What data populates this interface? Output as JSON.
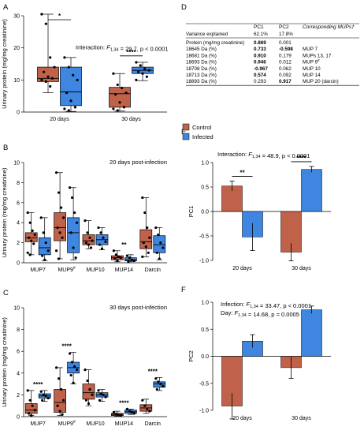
{
  "colors": {
    "control": "#c0614a",
    "infected": "#3f86e0",
    "pos": "#1e9b3a",
    "neg": "#9b37c9"
  },
  "panel_letters": [
    "A",
    "B",
    "C",
    "D",
    "E",
    "F"
  ],
  "chart_data": [
    {
      "panel": "A",
      "type": "box",
      "ylabel": "Urinary protein (mg/mg creatinine)",
      "ylim": [
        0,
        30
      ],
      "yticks": [
        0,
        10,
        20,
        30
      ],
      "categories": [
        "20 days",
        "30 days"
      ],
      "annotation": "Interaction: F1,34 = 29.7, p < 0.0001",
      "series": [
        {
          "group": "control",
          "boxes": [
            {
              "min": 6,
              "q1": 9.5,
              "median": 10.5,
              "q3": 14,
              "max": 30.5,
              "points": [
                30.5,
                27.5,
                17,
                14,
                12.5,
                11,
                10.5,
                10,
                9.5,
                8
              ]
            },
            {
              "min": 0.3,
              "q1": 1.5,
              "median": 5.7,
              "q3": 7.7,
              "max": 12,
              "points": [
                12,
                8.5,
                7.5,
                6,
                5.5,
                3,
                1.5,
                1,
                0.5
              ]
            }
          ]
        },
        {
          "group": "infected",
          "boxes": [
            {
              "min": 0.2,
              "q1": 2,
              "median": 6.3,
              "q3": 14,
              "max": 17,
              "points": [
                17,
                14,
                11.5,
                10,
                6,
                3.5,
                1.5,
                1,
                0.5
              ]
            },
            {
              "min": 9.8,
              "q1": 12,
              "median": 13,
              "q3": 14,
              "max": 15.5,
              "points": [
                15.5,
                14.5,
                13.5,
                13,
                12.5,
                12,
                11,
                10
              ]
            }
          ]
        }
      ],
      "brackets": [
        {
          "from": 0,
          "to": 1,
          "label": "*"
        },
        {
          "from": 2,
          "to": 3,
          "label": "****"
        }
      ]
    },
    {
      "panel": "B",
      "type": "box",
      "title": "20 days post-infection",
      "ylabel": "Urinary protein (mg/mg creatinine)",
      "ylim": [
        0,
        10
      ],
      "yticks": [
        0,
        2,
        4,
        6,
        8,
        10
      ],
      "categories": [
        "MUP7",
        "MUP9#",
        "MUP10",
        "MUP14",
        "Darcin"
      ],
      "series": [
        {
          "group": "control",
          "boxes": [
            {
              "min": 0.8,
              "q1": 2.1,
              "median": 2.5,
              "q3": 3,
              "max": 5,
              "points": [
                5,
                4,
                3.2,
                2.8,
                2.5,
                2.2,
                1.9,
                1,
                0.8
              ]
            },
            {
              "min": 0.4,
              "q1": 2.2,
              "median": 3.5,
              "q3": 5,
              "max": 9,
              "points": [
                9,
                7,
                5.5,
                4.5,
                3.5,
                3,
                2.5,
                1.2,
                0.4
              ]
            },
            {
              "min": 1.4,
              "q1": 1.8,
              "median": 2.2,
              "q3": 2.8,
              "max": 4.2,
              "points": [
                4.2,
                3,
                2.5,
                2.2,
                2,
                1.8,
                1.5
              ]
            },
            {
              "min": 0.1,
              "q1": 0.3,
              "median": 0.5,
              "q3": 0.7,
              "max": 1.2,
              "points": [
                1.2,
                0.8,
                0.6,
                0.5,
                0.4,
                0.2
              ]
            },
            {
              "min": 0.6,
              "q1": 1.4,
              "median": 2.1,
              "q3": 3.3,
              "max": 6.5,
              "points": [
                6.5,
                5,
                3.5,
                2.5,
                2,
                1.6,
                1,
                0.6
              ]
            }
          ]
        },
        {
          "group": "infected",
          "boxes": [
            {
              "min": 0.2,
              "q1": 0.8,
              "median": 1.5,
              "q3": 2.5,
              "max": 4.5,
              "points": [
                4.5,
                3,
                2,
                1.2,
                0.7,
                0.3
              ]
            },
            {
              "min": 0.3,
              "q1": 1,
              "median": 3,
              "q3": 4.5,
              "max": 7.5,
              "points": [
                7.5,
                6.5,
                5,
                4,
                3,
                1.5,
                0.5
              ]
            },
            {
              "min": 1.3,
              "q1": 1.8,
              "median": 2.3,
              "q3": 2.8,
              "max": 3.5,
              "points": [
                3.5,
                3,
                2.5,
                2.1,
                1.8,
                1.4
              ]
            },
            {
              "min": 0.1,
              "q1": 0.2,
              "median": 0.3,
              "q3": 0.5,
              "max": 0.8,
              "points": [
                0.7,
                0.5,
                0.3,
                0.2,
                0.1
              ]
            },
            {
              "min": 0.3,
              "q1": 1,
              "median": 1.8,
              "q3": 2.7,
              "max": 3.5,
              "points": [
                3.5,
                2.8,
                2,
                1.5,
                1,
                0.4
              ]
            }
          ]
        }
      ],
      "sig": [
        {
          "category": 3,
          "label": "**"
        }
      ]
    },
    {
      "panel": "C",
      "type": "box",
      "title": "30 days post-infection",
      "ylabel": "Urinary protein (mg/mg creatinine)",
      "ylim": [
        0,
        10
      ],
      "yticks": [
        0,
        2,
        4,
        6,
        8,
        10
      ],
      "categories": [
        "MUP7",
        "MUP9#",
        "MUP10",
        "MUP14",
        "Darcin"
      ],
      "series": [
        {
          "group": "control",
          "boxes": [
            {
              "min": 0.1,
              "q1": 0.3,
              "median": 0.6,
              "q3": 1.2,
              "max": 2.4,
              "points": [
                2.4,
                1.5,
                1,
                0.6,
                0.3,
                0.1
              ]
            },
            {
              "min": 0.1,
              "q1": 0.4,
              "median": 1.3,
              "q3": 2.5,
              "max": 4.5,
              "points": [
                4.5,
                3.5,
                2.5,
                1.5,
                1,
                0.5,
                0.2
              ]
            },
            {
              "min": 1,
              "q1": 1.6,
              "median": 2.2,
              "q3": 3,
              "max": 4.3,
              "points": [
                4.3,
                3.3,
                2.5,
                2,
                1.5,
                1.2
              ]
            },
            {
              "min": 0.05,
              "q1": 0.1,
              "median": 0.2,
              "q3": 0.3,
              "max": 0.5,
              "points": [
                0.4,
                0.25,
                0.15,
                0.1
              ]
            },
            {
              "min": 0.3,
              "q1": 0.5,
              "median": 0.8,
              "q3": 1.1,
              "max": 1.6,
              "points": [
                1.5,
                1,
                0.7,
                0.5
              ]
            }
          ]
        },
        {
          "group": "infected",
          "boxes": [
            {
              "min": 1.4,
              "q1": 1.7,
              "median": 1.9,
              "q3": 2.1,
              "max": 2.4,
              "points": [
                2.3,
                2,
                1.9,
                1.7,
                1.5
              ]
            },
            {
              "min": 3,
              "q1": 4,
              "median": 4.5,
              "q3": 5,
              "max": 5.9,
              "points": [
                5.8,
                5,
                4.6,
                4.3,
                3.8,
                3.1
              ]
            },
            {
              "min": 1.4,
              "q1": 1.8,
              "median": 2,
              "q3": 2.2,
              "max": 2.5,
              "points": [
                2.4,
                2.1,
                2,
                1.8,
                1.5
              ]
            },
            {
              "min": 0.2,
              "q1": 0.3,
              "median": 0.45,
              "q3": 0.6,
              "max": 0.7,
              "points": [
                0.7,
                0.5,
                0.4,
                0.3
              ]
            },
            {
              "min": 2.4,
              "q1": 2.7,
              "median": 3,
              "q3": 3.2,
              "max": 3.6,
              "points": [
                3.5,
                3.2,
                3,
                2.8,
                2.5
              ]
            }
          ]
        }
      ],
      "sig": [
        {
          "category": 0,
          "label": "****"
        },
        {
          "category": 1,
          "label": "****"
        },
        {
          "category": 3,
          "label": "****"
        },
        {
          "category": 4,
          "label": "****"
        }
      ]
    },
    {
      "panel": "D",
      "type": "table",
      "header_label": "Variance explained",
      "columns": [
        "PC1",
        "PC2",
        "Corresponding MUPs†"
      ],
      "variance": [
        "62.1%",
        "17.8%"
      ],
      "rows": [
        {
          "label": "Protein (mg/mg creatinine)",
          "pc1": "0.869",
          "pc2": "0.001",
          "pc1_color": "pos",
          "pc2_color": "",
          "mup": ""
        },
        {
          "label": "18645 Da (%)",
          "pc1": "0.733",
          "pc2": "-0.598",
          "pc1_color": "pos",
          "pc2_color": "neg",
          "mup": "MUP 7"
        },
        {
          "label": "18681 Da (%)",
          "pc1": "0.910",
          "pc2": "0.179",
          "pc1_color": "pos",
          "pc2_color": "",
          "mup": "MUPs 13, 17"
        },
        {
          "label": "18693 Da (%)",
          "pc1": "0.946",
          "pc2": "0.012",
          "pc1_color": "pos",
          "pc2_color": "",
          "mup": "MUP 9#"
        },
        {
          "label": "18708 Da (%)",
          "pc1": "-0.967",
          "pc2": "0.062",
          "pc1_color": "neg",
          "pc2_color": "",
          "mup": "MUP 10"
        },
        {
          "label": "18713 Da (%)",
          "pc1": "0.574",
          "pc2": "0.092",
          "pc1_color": "pos",
          "pc2_color": "",
          "mup": "MUP 14"
        },
        {
          "label": "18893 Da (%)",
          "pc1": "0.293",
          "pc2": "0.917",
          "pc1_color": "",
          "pc2_color": "pos",
          "mup": "MUP 20 (darcin)"
        }
      ]
    },
    {
      "panel": "E",
      "type": "bar",
      "ylabel": "PC1",
      "ylim": [
        -1.0,
        1.0
      ],
      "yticks": [
        -1.0,
        -0.5,
        0.0,
        0.5,
        1.0
      ],
      "categories": [
        "20 days",
        "30 days"
      ],
      "annotation": "Interaction: F1,34 = 48.9, p < 0.0001",
      "legend": [
        "Control",
        "Infected"
      ],
      "series": [
        {
          "name": "Control",
          "group": "control",
          "values": [
            0.52,
            -0.83
          ],
          "errors": [
            0.1,
            0.18
          ]
        },
        {
          "name": "Infected",
          "group": "infected",
          "values": [
            -0.52,
            0.86
          ],
          "errors": [
            0.28,
            0.06
          ]
        }
      ],
      "sig": [
        {
          "category": 0,
          "label": "**"
        },
        {
          "category": 1,
          "label": "****"
        }
      ]
    },
    {
      "panel": "F",
      "type": "bar",
      "ylabel": "PC2",
      "ylim": [
        -1.0,
        1.0
      ],
      "yticks": [
        -1.0,
        -0.5,
        0.0,
        0.5,
        1.0
      ],
      "categories": [
        "20 days",
        "30 days"
      ],
      "annotation": [
        "Infection: F1,34 = 33.47, p < 0.0001",
        "Day: F1,34 = 14.68, p = 0.0005"
      ],
      "series": [
        {
          "name": "Control",
          "group": "control",
          "values": [
            -0.92,
            -0.21
          ],
          "errors": [
            0.24,
            0.2
          ]
        },
        {
          "name": "Infected",
          "group": "infected",
          "values": [
            0.28,
            0.86
          ],
          "errors": [
            0.12,
            0.07
          ]
        }
      ]
    }
  ]
}
